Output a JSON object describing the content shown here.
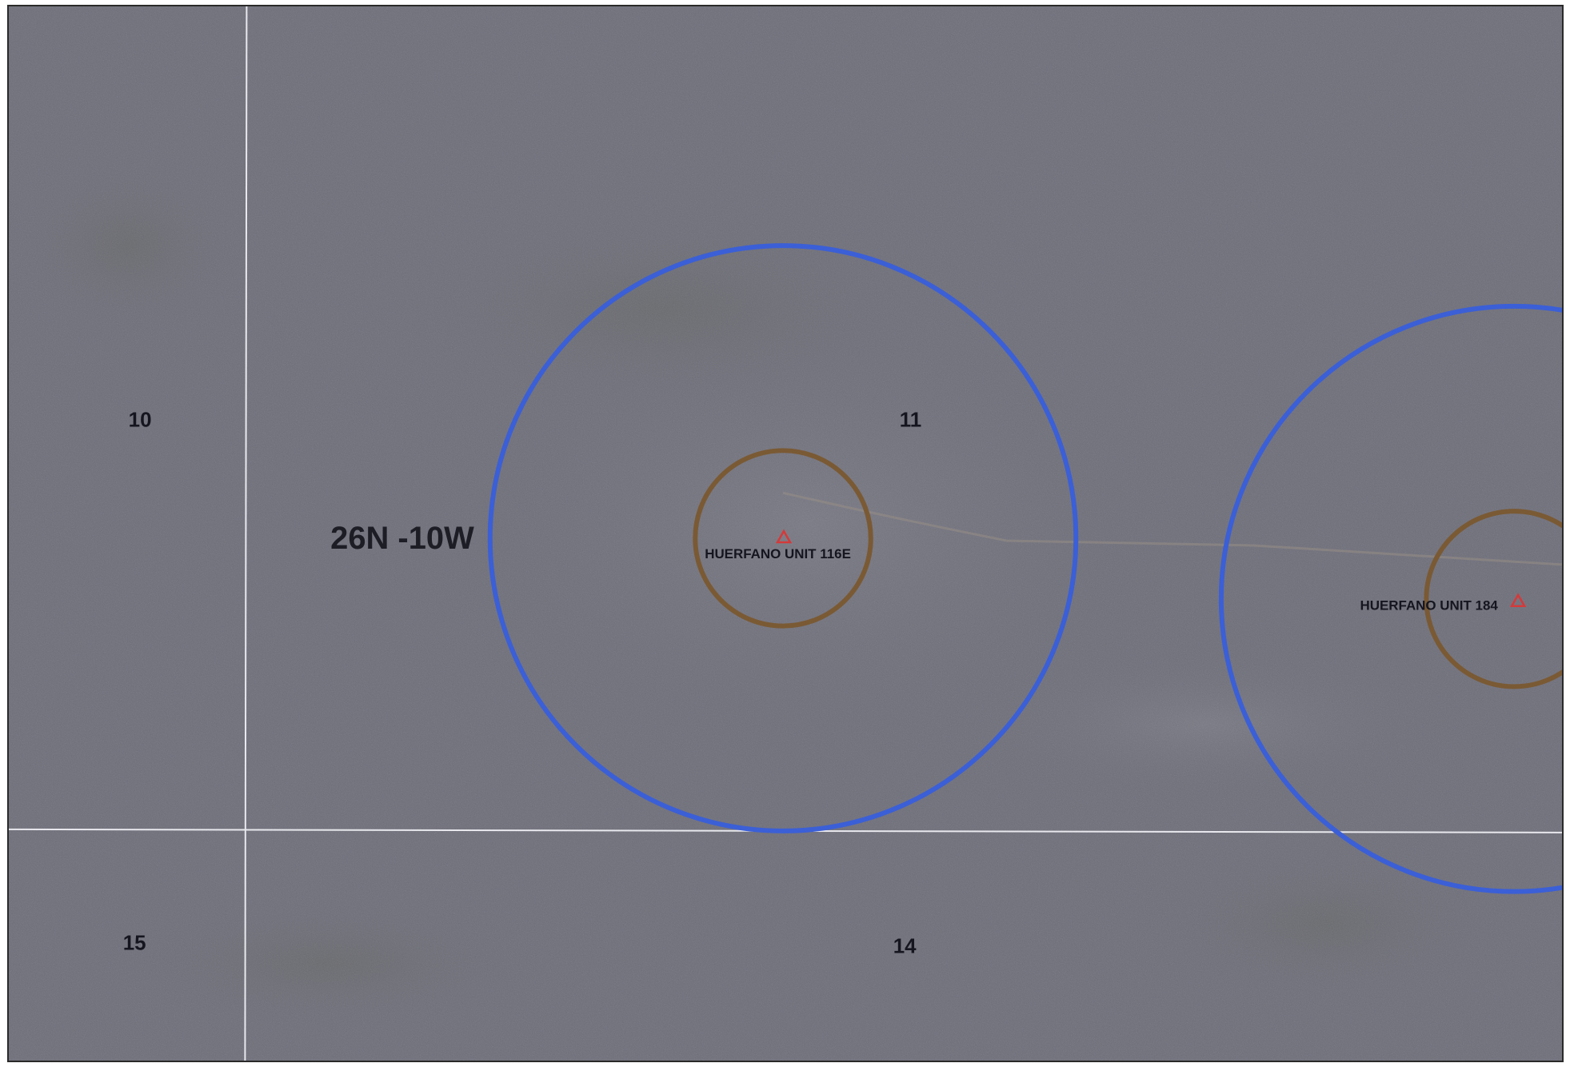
{
  "map": {
    "township_label": "26N -10W",
    "sections": [
      {
        "id": "s10",
        "label": "10"
      },
      {
        "id": "s11",
        "label": "11"
      },
      {
        "id": "s15",
        "label": "15"
      },
      {
        "id": "s14",
        "label": "14"
      }
    ],
    "wells": [
      {
        "id": "w116",
        "label": "HUERFANO UNIT 116E",
        "symbol": "well-triangle-icon"
      },
      {
        "id": "w184",
        "label": "HUERFANO UNIT 184",
        "symbol": "well-triangle-icon"
      }
    ],
    "colors": {
      "background": "#6f6f7b",
      "section_line": "#e8e8ee",
      "outer_buffer": "#3b5fd6",
      "inner_buffer": "#7a5a34",
      "well_symbol": "#d43a3a",
      "text": "#15151f"
    }
  }
}
